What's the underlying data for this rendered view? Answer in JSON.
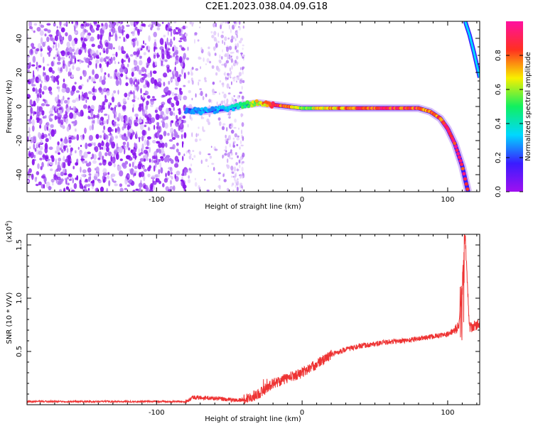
{
  "title": "C2E1.2023.038.04.09.G18",
  "chart_data": [
    {
      "type": "heatmap",
      "name": "spectrogram",
      "xlabel": "Height of straight line (km)",
      "ylabel": "Frequency (Hz)",
      "xlim": [
        -189,
        122
      ],
      "ylim": [
        -50,
        50
      ],
      "xticks": [
        -100,
        0,
        100
      ],
      "yticks": [
        -40,
        -20,
        0,
        20,
        40
      ],
      "colorbar": {
        "label": "Normalized spectral amplitude",
        "range": [
          0,
          1
        ],
        "ticks": [
          0.0,
          0.2,
          0.4,
          0.6,
          0.8
        ],
        "colormap": [
          "#a010f0",
          "#3a1cff",
          "#00d8ff",
          "#10f060",
          "#f8f000",
          "#ff3020",
          "#ff10a0"
        ]
      },
      "noise_region": {
        "x": [
          -189,
          -80
        ],
        "y": [
          -50,
          50
        ]
      },
      "sparse_region": {
        "x": [
          -80,
          -40
        ],
        "y": [
          -50,
          50
        ]
      },
      "ridge": {
        "x": [
          -80,
          -70,
          -60,
          -50,
          -40,
          -30,
          -20,
          -10,
          0,
          20,
          40,
          60,
          80,
          88,
          95,
          100,
          105,
          110,
          114
        ],
        "y": [
          -2,
          -3,
          -2,
          -1,
          1,
          2,
          1,
          0,
          -1,
          -1,
          -1,
          -1,
          -1,
          -3,
          -7,
          -13,
          -22,
          -35,
          -50
        ],
        "amplitude": [
          0.25,
          0.3,
          0.3,
          0.35,
          0.5,
          0.7,
          0.85,
          0.9,
          0.6,
          0.75,
          0.85,
          0.9,
          0.85,
          0.8,
          0.85,
          0.9,
          0.9,
          0.95,
          0.9
        ]
      },
      "upper_branch": {
        "x": [
          112,
          115,
          118,
          122
        ],
        "y": [
          50,
          42,
          32,
          17
        ]
      }
    },
    {
      "type": "line",
      "name": "snr",
      "xlabel": "Height of straight line (km)",
      "ylabel": "SNR (10 * V/V)",
      "yscale_label": "(x10",
      "yscale_exp": "4",
      "xlim": [
        -189,
        122
      ],
      "ylim": [
        0,
        1.6
      ],
      "xticks": [
        -100,
        0,
        100
      ],
      "yticks": [
        0.5,
        1.0,
        1.5
      ],
      "ytick_labels": [
        "0.5",
        "1.0",
        "1.5"
      ],
      "color": "#ee3333",
      "trend": {
        "x": [
          -189,
          -80,
          -75,
          -60,
          -45,
          -40,
          -30,
          -20,
          -10,
          0,
          10,
          20,
          30,
          40,
          50,
          60,
          70,
          80,
          90,
          100,
          105,
          108,
          110,
          112,
          115,
          122
        ],
        "y": [
          0.03,
          0.03,
          0.07,
          0.06,
          0.04,
          0.05,
          0.1,
          0.2,
          0.25,
          0.3,
          0.38,
          0.47,
          0.52,
          0.55,
          0.57,
          0.59,
          0.6,
          0.62,
          0.64,
          0.66,
          0.7,
          0.75,
          1.15,
          1.6,
          0.72,
          0.76
        ]
      }
    }
  ]
}
